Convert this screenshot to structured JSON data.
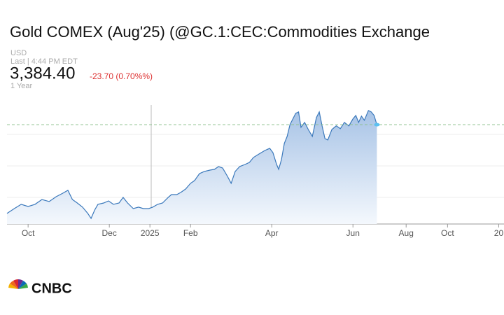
{
  "chart_data": {
    "type": "area",
    "title": "Gold COMEX (Aug'25) (@GC.1:CEC:Commodities Exchange",
    "currency": "USD",
    "last_time": "Last | 4:44 PM EDT",
    "price": "3,384.40",
    "change": "-23.70 (0.70%%)",
    "range": "1 Year",
    "logo": "CNBC",
    "color": "#3a78bb",
    "x": [
      0.48,
      0.66,
      0.83,
      1.0,
      1.17,
      1.34,
      1.52,
      1.69,
      1.86,
      1.98,
      2.09,
      2.21,
      2.34,
      2.47,
      2.55,
      2.64,
      2.72,
      2.86,
      2.98,
      3.1,
      3.24,
      3.34,
      3.45,
      3.59,
      3.72,
      3.84,
      3.97,
      4.07,
      4.19,
      4.31,
      4.45,
      4.53,
      4.66,
      4.76,
      4.88,
      5.0,
      5.1,
      5.22,
      5.34,
      5.48,
      5.59,
      5.69,
      5.79,
      5.91,
      6.0,
      6.1,
      6.21,
      6.34,
      6.45,
      6.55,
      6.69,
      6.83,
      6.95,
      7.03,
      7.12,
      7.17,
      7.24,
      7.31,
      7.38,
      7.45,
      7.52,
      7.59,
      7.66,
      7.72,
      7.81,
      7.9,
      8.0,
      8.1,
      8.17,
      8.24,
      8.31,
      8.38,
      8.48,
      8.59,
      8.69,
      8.79,
      8.9,
      9.0,
      9.07,
      9.14,
      9.21,
      9.28,
      9.38,
      9.45,
      9.52,
      9.59
    ],
    "values": [
      2594,
      2637,
      2675,
      2656,
      2675,
      2718,
      2700,
      2743,
      2775,
      2800,
      2718,
      2687,
      2650,
      2594,
      2550,
      2625,
      2675,
      2687,
      2706,
      2675,
      2687,
      2737,
      2687,
      2637,
      2650,
      2637,
      2637,
      2650,
      2675,
      2687,
      2737,
      2762,
      2762,
      2781,
      2812,
      2862,
      2887,
      2949,
      2968,
      2980,
      2987,
      3012,
      2999,
      2924,
      2862,
      2968,
      3012,
      3030,
      3049,
      3093,
      3124,
      3155,
      3174,
      3136,
      3030,
      2987,
      3074,
      3218,
      3280,
      3386,
      3436,
      3486,
      3498,
      3361,
      3405,
      3342,
      3280,
      3448,
      3498,
      3374,
      3261,
      3249,
      3342,
      3374,
      3349,
      3405,
      3374,
      3436,
      3467,
      3405,
      3461,
      3424,
      3511,
      3498,
      3467,
      3384.4
    ],
    "xlim": [
      0.48,
      12.72
    ],
    "xticks": [
      {
        "value": 1,
        "label": "Oct"
      },
      {
        "value": 3,
        "label": "Dec"
      },
      {
        "value": 4,
        "label": "2025"
      },
      {
        "value": 5,
        "label": "Feb"
      },
      {
        "value": 7,
        "label": "Apr"
      },
      {
        "value": 9,
        "label": "Jun"
      },
      {
        "value": 10.31,
        "label": "Aug"
      },
      {
        "value": 11.33,
        "label": "Oct"
      },
      {
        "value": 12.59,
        "label": "20"
      }
    ],
    "ylim": [
      2500,
      3560
    ]
  }
}
